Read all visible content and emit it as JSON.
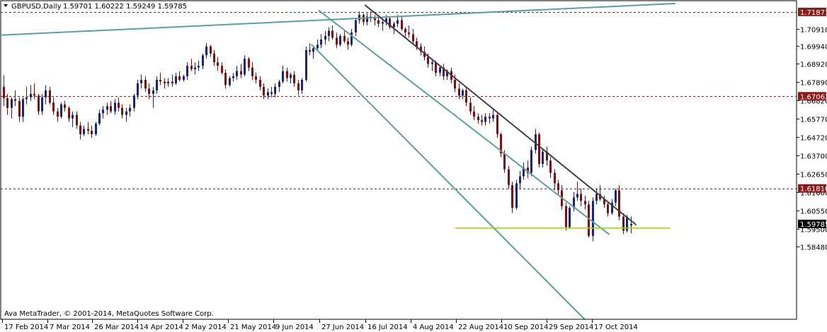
{
  "header": {
    "menu_icon": "triangle-down-icon",
    "symbol": "GBPUSD,Daily",
    "ohlc": "1.59701 1.60222 1.59249 1.59785"
  },
  "footer": {
    "copyright": "Ava MetaTrader, © 2001-2014, MetaQuotes Software Corp."
  },
  "colors": {
    "bull": "#1a237e",
    "bear": "#7b1010",
    "channel": "#5a9ea0",
    "resistance": "#404040",
    "support": "#99cc22",
    "level_line": "#8b1a1a",
    "current_price_box": "#000000",
    "level_box": "#8b1a1a"
  },
  "chart_data": {
    "type": "candlestick",
    "ylim": [
      1.5435,
      1.7251
    ],
    "grid": false,
    "yticks": [
      "1.70910",
      "1.69940",
      "1.68920",
      "1.67890",
      "1.66820",
      "1.65770",
      "1.64720",
      "1.63700",
      "1.62650",
      "1.61600",
      "1.60550",
      "1.59500",
      "1.58480"
    ],
    "xticks": [
      "17 Feb 2014",
      "7 Mar 2014",
      "26 Mar 2014",
      "14 Apr 2014",
      "2 May 2014",
      "21 May 2014",
      "9 Jun 2014",
      "27 Jun 2014",
      "16 Jul 2014",
      "4 Aug 2014",
      "22 Aug 2014",
      "10 Sep 2014",
      "29 Sep 2014",
      "17 Oct 2014"
    ],
    "levels": [
      {
        "label": "1.71871",
        "value": 1.71871
      },
      {
        "label": "1.67062",
        "value": 1.67062
      },
      {
        "label": "1.61810",
        "value": 1.6181
      }
    ],
    "current_price": {
      "label": "1.59785",
      "value": 1.59785
    },
    "support_value": 1.5955,
    "series": [
      {
        "name": "GBPUSD",
        "values": [
          [
            1.676,
            1.6825,
            1.665,
            1.6695
          ],
          [
            1.6695,
            1.672,
            1.66,
            1.664
          ],
          [
            1.664,
            1.67,
            1.658,
            1.669
          ],
          [
            1.669,
            1.674,
            1.665,
            1.668
          ],
          [
            1.668,
            1.67,
            1.656,
            1.659
          ],
          [
            1.659,
            1.67,
            1.656,
            1.669
          ],
          [
            1.669,
            1.676,
            1.666,
            1.67
          ],
          [
            1.67,
            1.677,
            1.668,
            1.672
          ],
          [
            1.672,
            1.678,
            1.669,
            1.671
          ],
          [
            1.671,
            1.672,
            1.66,
            1.662
          ],
          [
            1.662,
            1.672,
            1.66,
            1.67
          ],
          [
            1.67,
            1.677,
            1.666,
            1.674
          ],
          [
            1.674,
            1.676,
            1.666,
            1.667
          ],
          [
            1.667,
            1.67,
            1.66,
            1.662
          ],
          [
            1.662,
            1.664,
            1.656,
            1.659
          ],
          [
            1.659,
            1.667,
            1.658,
            1.666
          ],
          [
            1.666,
            1.668,
            1.662,
            1.664
          ],
          [
            1.664,
            1.665,
            1.656,
            1.658
          ],
          [
            1.658,
            1.662,
            1.653,
            1.66
          ],
          [
            1.66,
            1.662,
            1.652,
            1.654
          ],
          [
            1.654,
            1.656,
            1.646,
            1.649
          ],
          [
            1.649,
            1.654,
            1.648,
            1.652
          ],
          [
            1.652,
            1.656,
            1.649,
            1.651
          ],
          [
            1.651,
            1.654,
            1.647,
            1.649
          ],
          [
            1.649,
            1.656,
            1.648,
            1.655
          ],
          [
            1.655,
            1.663,
            1.654,
            1.661
          ],
          [
            1.661,
            1.665,
            1.658,
            1.663
          ],
          [
            1.663,
            1.667,
            1.66,
            1.665
          ],
          [
            1.665,
            1.668,
            1.661,
            1.662
          ],
          [
            1.662,
            1.669,
            1.66,
            1.667
          ],
          [
            1.667,
            1.67,
            1.662,
            1.664
          ],
          [
            1.664,
            1.666,
            1.658,
            1.66
          ],
          [
            1.66,
            1.664,
            1.656,
            1.662
          ],
          [
            1.662,
            1.666,
            1.659,
            1.664
          ],
          [
            1.664,
            1.672,
            1.662,
            1.671
          ],
          [
            1.671,
            1.68,
            1.669,
            1.678
          ],
          [
            1.678,
            1.683,
            1.675,
            1.68
          ],
          [
            1.68,
            1.682,
            1.673,
            1.675
          ],
          [
            1.675,
            1.678,
            1.669,
            1.672
          ],
          [
            1.672,
            1.676,
            1.664,
            1.674
          ],
          [
            1.674,
            1.682,
            1.672,
            1.68
          ],
          [
            1.68,
            1.684,
            1.677,
            1.679
          ],
          [
            1.679,
            1.681,
            1.675,
            1.678
          ],
          [
            1.678,
            1.681,
            1.676,
            1.679
          ],
          [
            1.679,
            1.683,
            1.676,
            1.678
          ],
          [
            1.678,
            1.684,
            1.677,
            1.682
          ],
          [
            1.682,
            1.685,
            1.679,
            1.68
          ],
          [
            1.68,
            1.683,
            1.679,
            1.682
          ],
          [
            1.682,
            1.69,
            1.68,
            1.688
          ],
          [
            1.688,
            1.692,
            1.685,
            1.686
          ],
          [
            1.686,
            1.69,
            1.683,
            1.687
          ],
          [
            1.687,
            1.691,
            1.685,
            1.688
          ],
          [
            1.688,
            1.695,
            1.686,
            1.694
          ],
          [
            1.694,
            1.701,
            1.692,
            1.699
          ],
          [
            1.699,
            1.7,
            1.693,
            1.695
          ],
          [
            1.695,
            1.697,
            1.688,
            1.69
          ],
          [
            1.69,
            1.693,
            1.685,
            1.688
          ],
          [
            1.688,
            1.69,
            1.683,
            1.684
          ],
          [
            1.684,
            1.686,
            1.675,
            1.677
          ],
          [
            1.677,
            1.682,
            1.676,
            1.681
          ],
          [
            1.681,
            1.684,
            1.679,
            1.682
          ],
          [
            1.682,
            1.688,
            1.68,
            1.685
          ],
          [
            1.685,
            1.689,
            1.681,
            1.683
          ],
          [
            1.683,
            1.694,
            1.682,
            1.692
          ],
          [
            1.692,
            1.693,
            1.685,
            1.687
          ],
          [
            1.687,
            1.69,
            1.68,
            1.682
          ],
          [
            1.682,
            1.684,
            1.678,
            1.68
          ],
          [
            1.68,
            1.682,
            1.674,
            1.676
          ],
          [
            1.676,
            1.678,
            1.669,
            1.671
          ],
          [
            1.671,
            1.675,
            1.669,
            1.673
          ],
          [
            1.673,
            1.676,
            1.67,
            1.672
          ],
          [
            1.672,
            1.678,
            1.67,
            1.676
          ],
          [
            1.676,
            1.68,
            1.673,
            1.679
          ],
          [
            1.679,
            1.688,
            1.678,
            1.685
          ],
          [
            1.685,
            1.687,
            1.679,
            1.681
          ],
          [
            1.681,
            1.684,
            1.678,
            1.683
          ],
          [
            1.683,
            1.685,
            1.676,
            1.678
          ],
          [
            1.678,
            1.68,
            1.671,
            1.674
          ],
          [
            1.674,
            1.681,
            1.672,
            1.68
          ],
          [
            1.68,
            1.699,
            1.679,
            1.697
          ],
          [
            1.697,
            1.701,
            1.694,
            1.696
          ],
          [
            1.696,
            1.699,
            1.692,
            1.698
          ],
          [
            1.698,
            1.703,
            1.696,
            1.7
          ],
          [
            1.7,
            1.706,
            1.698,
            1.703
          ],
          [
            1.703,
            1.708,
            1.7,
            1.705
          ],
          [
            1.705,
            1.71,
            1.702,
            1.708
          ],
          [
            1.708,
            1.711,
            1.703,
            1.704
          ],
          [
            1.704,
            1.707,
            1.698,
            1.7
          ],
          [
            1.7,
            1.706,
            1.699,
            1.705
          ],
          [
            1.705,
            1.708,
            1.701,
            1.702
          ],
          [
            1.702,
            1.704,
            1.697,
            1.7
          ],
          [
            1.7,
            1.709,
            1.699,
            1.707
          ],
          [
            1.707,
            1.715,
            1.705,
            1.714
          ],
          [
            1.714,
            1.719,
            1.712,
            1.717
          ],
          [
            1.717,
            1.718,
            1.711,
            1.713
          ],
          [
            1.713,
            1.718,
            1.711,
            1.716
          ],
          [
            1.716,
            1.719,
            1.713,
            1.715
          ],
          [
            1.715,
            1.717,
            1.711,
            1.714
          ],
          [
            1.714,
            1.717,
            1.71,
            1.712
          ],
          [
            1.712,
            1.715,
            1.708,
            1.713
          ],
          [
            1.713,
            1.717,
            1.711,
            1.715
          ],
          [
            1.715,
            1.716,
            1.709,
            1.71
          ],
          [
            1.71,
            1.713,
            1.706,
            1.712
          ],
          [
            1.712,
            1.717,
            1.71,
            1.714
          ],
          [
            1.714,
            1.716,
            1.708,
            1.709
          ],
          [
            1.709,
            1.71,
            1.704,
            1.707
          ],
          [
            1.707,
            1.711,
            1.704,
            1.706
          ],
          [
            1.706,
            1.709,
            1.7,
            1.702
          ],
          [
            1.702,
            1.704,
            1.697,
            1.699
          ],
          [
            1.699,
            1.701,
            1.694,
            1.696
          ],
          [
            1.696,
            1.699,
            1.691,
            1.693
          ],
          [
            1.693,
            1.695,
            1.687,
            1.689
          ],
          [
            1.689,
            1.692,
            1.685,
            1.69
          ],
          [
            1.69,
            1.691,
            1.682,
            1.684
          ],
          [
            1.684,
            1.688,
            1.682,
            1.687
          ],
          [
            1.687,
            1.689,
            1.68,
            1.682
          ],
          [
            1.682,
            1.686,
            1.68,
            1.685
          ],
          [
            1.685,
            1.687,
            1.678,
            1.68
          ],
          [
            1.68,
            1.683,
            1.673,
            1.675
          ],
          [
            1.675,
            1.678,
            1.669,
            1.671
          ],
          [
            1.671,
            1.675,
            1.669,
            1.674
          ],
          [
            1.674,
            1.676,
            1.665,
            1.667
          ],
          [
            1.667,
            1.67,
            1.66,
            1.662
          ],
          [
            1.662,
            1.665,
            1.657,
            1.659
          ],
          [
            1.659,
            1.661,
            1.655,
            1.657
          ],
          [
            1.657,
            1.66,
            1.654,
            1.656
          ],
          [
            1.656,
            1.661,
            1.654,
            1.659
          ],
          [
            1.659,
            1.661,
            1.655,
            1.658
          ],
          [
            1.658,
            1.663,
            1.656,
            1.66
          ],
          [
            1.66,
            1.661,
            1.647,
            1.649
          ],
          [
            1.649,
            1.65,
            1.636,
            1.638
          ],
          [
            1.638,
            1.64,
            1.627,
            1.629
          ],
          [
            1.629,
            1.631,
            1.618,
            1.62
          ],
          [
            1.62,
            1.622,
            1.604,
            1.607
          ],
          [
            1.607,
            1.623,
            1.606,
            1.621
          ],
          [
            1.621,
            1.628,
            1.618,
            1.625
          ],
          [
            1.625,
            1.633,
            1.623,
            1.63
          ],
          [
            1.63,
            1.634,
            1.624,
            1.627
          ],
          [
            1.627,
            1.642,
            1.625,
            1.64
          ],
          [
            1.64,
            1.652,
            1.638,
            1.649
          ],
          [
            1.649,
            1.65,
            1.63,
            1.632
          ],
          [
            1.632,
            1.641,
            1.63,
            1.639
          ],
          [
            1.639,
            1.642,
            1.631,
            1.634
          ],
          [
            1.634,
            1.636,
            1.624,
            1.627
          ],
          [
            1.627,
            1.629,
            1.617,
            1.621
          ],
          [
            1.621,
            1.623,
            1.614,
            1.617
          ],
          [
            1.617,
            1.62,
            1.606,
            1.608
          ],
          [
            1.608,
            1.61,
            1.594,
            1.596
          ],
          [
            1.596,
            1.608,
            1.595,
            1.607
          ],
          [
            1.607,
            1.616,
            1.605,
            1.613
          ],
          [
            1.613,
            1.622,
            1.611,
            1.615
          ],
          [
            1.615,
            1.618,
            1.608,
            1.611
          ],
          [
            1.611,
            1.614,
            1.606,
            1.609
          ],
          [
            1.609,
            1.611,
            1.59,
            1.591
          ],
          [
            1.591,
            1.613,
            1.588,
            1.611
          ],
          [
            1.611,
            1.618,
            1.609,
            1.615
          ],
          [
            1.615,
            1.62,
            1.611,
            1.612
          ],
          [
            1.612,
            1.614,
            1.607,
            1.609
          ],
          [
            1.609,
            1.611,
            1.602,
            1.604
          ],
          [
            1.604,
            1.612,
            1.603,
            1.61
          ],
          [
            1.61,
            1.618,
            1.608,
            1.617
          ],
          [
            1.617,
            1.62,
            1.6,
            1.602
          ],
          [
            1.602,
            1.604,
            1.592,
            1.594
          ],
          [
            1.594,
            1.603,
            1.593,
            1.602
          ],
          [
            1.597,
            1.6022,
            1.5925,
            1.5979
          ]
        ]
      }
    ],
    "overlays": [
      {
        "name": "channel-upper",
        "points": [
          [
            "2014-06-27",
            1.7195
          ],
          [
            "2014-10-24",
            1.592
          ]
        ]
      },
      {
        "name": "channel-lower",
        "points": [
          [
            "2014-06-24",
            1.7
          ],
          [
            "2014-10-14",
            1.5435
          ]
        ]
      },
      {
        "name": "long-trendline",
        "points": [
          [
            "2014-02-17",
            1.7055
          ],
          [
            "2014-11-20",
            1.7235
          ]
        ]
      },
      {
        "name": "resistance-line",
        "points": [
          [
            "2014-07-16",
            1.7225
          ],
          [
            "2014-11-04",
            1.5975
          ]
        ]
      },
      {
        "name": "support-line",
        "points": [
          [
            "2014-08-22",
            1.5955
          ],
          [
            "2014-11-18",
            1.5955
          ]
        ]
      }
    ]
  }
}
